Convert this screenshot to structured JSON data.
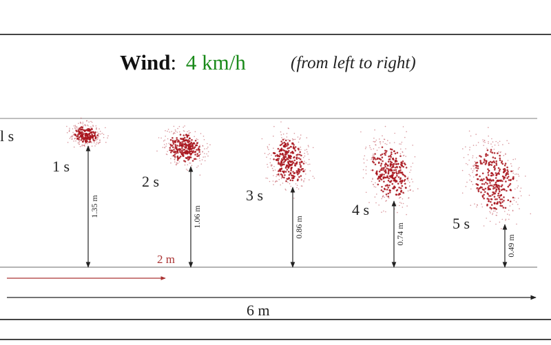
{
  "title": {
    "label": "Wind",
    "separator": ":",
    "speed": "4 km/h",
    "direction": "(from left to right)"
  },
  "edge_label": "l s",
  "snapshots": [
    {
      "time": "1 s",
      "height": "1.35 m"
    },
    {
      "time": "2 s",
      "height": "1.06 m"
    },
    {
      "time": "3 s",
      "height": "0.86 m"
    },
    {
      "time": "4 s",
      "height": "0.74 m"
    },
    {
      "time": "5 s",
      "height": "0.49 m"
    }
  ],
  "offset_label": "2 m",
  "distance_label": "6 m"
}
